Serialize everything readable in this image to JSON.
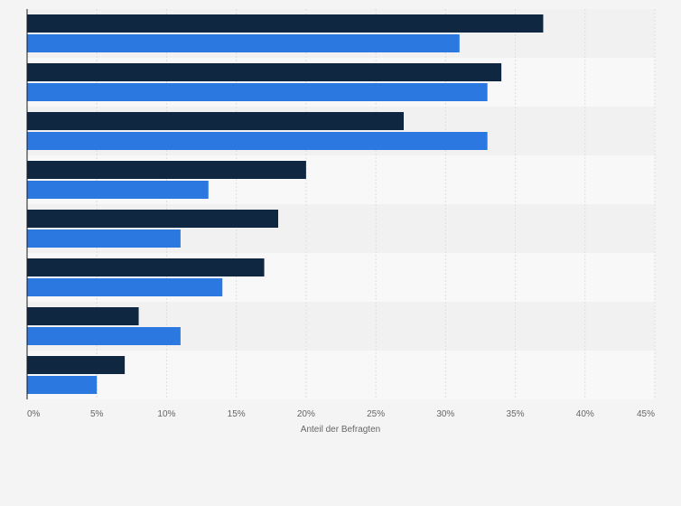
{
  "chart_data": {
    "type": "bar",
    "orientation": "horizontal",
    "title": "",
    "xlabel": "Anteil der Befragten",
    "ylabel": "",
    "xlim": [
      0,
      45
    ],
    "x_ticks": [
      "0%",
      "5%",
      "10%",
      "15%",
      "20%",
      "25%",
      "30%",
      "35%",
      "40%",
      "45%"
    ],
    "grid": true,
    "category_count": 8,
    "series": [
      {
        "color": "#0f2741",
        "values": [
          37,
          34,
          27,
          20,
          18,
          17,
          8,
          7
        ]
      },
      {
        "color": "#2a78e0",
        "values": [
          31,
          33,
          33,
          13,
          11,
          14,
          11,
          5
        ]
      }
    ]
  }
}
